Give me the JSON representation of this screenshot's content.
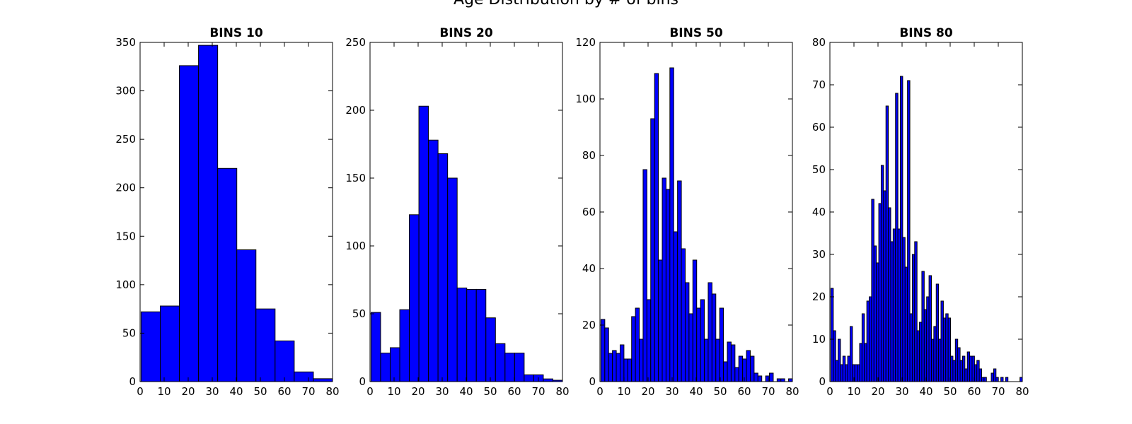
{
  "figure": {
    "suptitle": "Age Distribution by # of bins"
  },
  "chart_data": [
    {
      "type": "bar",
      "title": "BINS 10",
      "bins": 10,
      "xlim": [
        0,
        80
      ],
      "ylim": [
        0,
        350
      ],
      "xticks": [
        0,
        10,
        20,
        30,
        40,
        50,
        60,
        70,
        80
      ],
      "yticks": [
        0,
        50,
        100,
        150,
        200,
        250,
        300,
        350
      ],
      "bin_start": 0.42,
      "bin_end": 80.0,
      "values": [
        72,
        78,
        326,
        347,
        220,
        136,
        75,
        42,
        10,
        3
      ],
      "fill": "#0000ff"
    },
    {
      "type": "bar",
      "title": "BINS 20",
      "bins": 20,
      "xlim": [
        0,
        80
      ],
      "ylim": [
        0,
        250
      ],
      "xticks": [
        0,
        10,
        20,
        30,
        40,
        50,
        60,
        70,
        80
      ],
      "yticks": [
        0,
        50,
        100,
        150,
        200,
        250
      ],
      "bin_start": 0.42,
      "bin_end": 80.0,
      "values": [
        51,
        21,
        25,
        53,
        123,
        203,
        178,
        168,
        150,
        69,
        68,
        68,
        47,
        28,
        21,
        21,
        5,
        5,
        2,
        1
      ],
      "fill": "#0000ff"
    },
    {
      "type": "bar",
      "title": "BINS 50",
      "bins": 50,
      "xlim": [
        0,
        80
      ],
      "ylim": [
        0,
        120
      ],
      "xticks": [
        0,
        10,
        20,
        30,
        40,
        50,
        60,
        70,
        80
      ],
      "yticks": [
        0,
        20,
        40,
        60,
        80,
        100,
        120
      ],
      "bin_start": 0.42,
      "bin_end": 80.0,
      "values": [
        22,
        19,
        10,
        11,
        10,
        13,
        8,
        8,
        23,
        26,
        15,
        75,
        29,
        93,
        109,
        43,
        72,
        68,
        111,
        53,
        71,
        47,
        35,
        24,
        43,
        26,
        29,
        15,
        35,
        31,
        15,
        26,
        7,
        14,
        13,
        5,
        9,
        8,
        11,
        9,
        3,
        2,
        0,
        2,
        3,
        0,
        1,
        1,
        0,
        1
      ],
      "fill": "#0000ff"
    },
    {
      "type": "bar",
      "title": "BINS 80",
      "bins": 80,
      "xlim": [
        0,
        80
      ],
      "ylim": [
        0,
        80
      ],
      "xticks": [
        0,
        10,
        20,
        30,
        40,
        50,
        60,
        70,
        80
      ],
      "yticks": [
        0,
        10,
        20,
        30,
        40,
        50,
        60,
        70,
        80
      ],
      "bin_start": 0.42,
      "bin_end": 80.0,
      "values": [
        22,
        12,
        5,
        10,
        4,
        6,
        4,
        6,
        13,
        4,
        4,
        4,
        9,
        16,
        9,
        19,
        20,
        43,
        32,
        28,
        42,
        51,
        45,
        65,
        41,
        33,
        36,
        68,
        36,
        72,
        34,
        27,
        71,
        16,
        30,
        33,
        12,
        14,
        26,
        17,
        20,
        25,
        10,
        13,
        23,
        10,
        19,
        15,
        16,
        15,
        6,
        5,
        10,
        8,
        5,
        6,
        3,
        7,
        6,
        6,
        4,
        5,
        3,
        1,
        1,
        0,
        0,
        2,
        3,
        1,
        0,
        1,
        0,
        1,
        0,
        0,
        0,
        0,
        0,
        1
      ],
      "fill": "#0000ff"
    }
  ]
}
